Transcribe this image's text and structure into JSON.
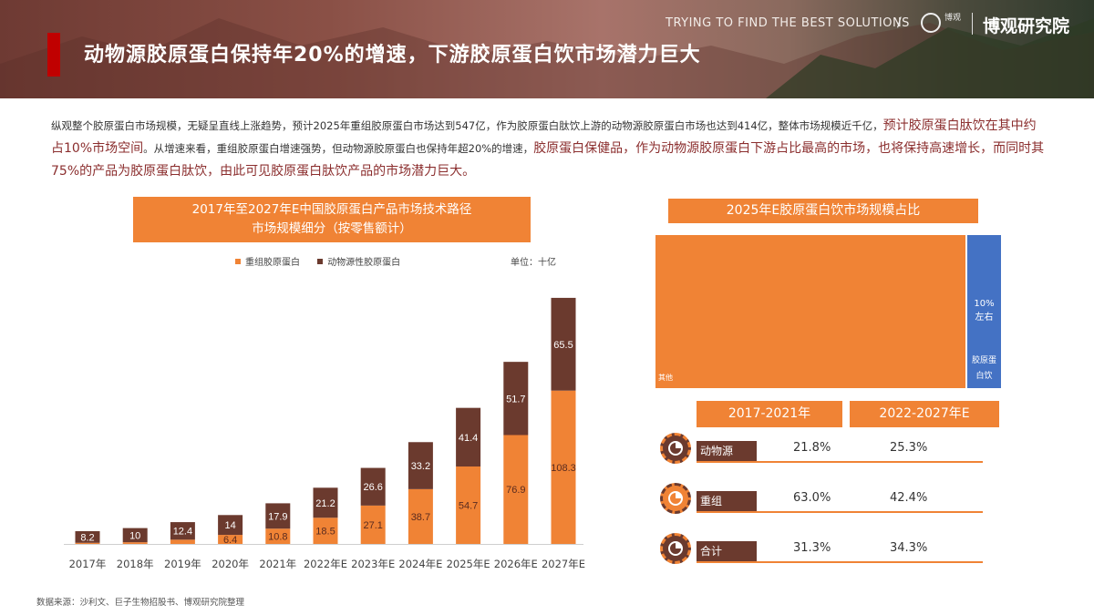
{
  "header": {
    "title": "动物源胶原蛋白保持年20%的增速，下游胶原蛋白饮市场潜力巨大",
    "tagline": "TRYING TO FIND THE BEST SOLUTIONS",
    "slash": "/",
    "brand": "博观研究院",
    "logo_small": "博观",
    "accent_color": "#c00000"
  },
  "intro": {
    "part1": "纵观整个胶原蛋白市场规模，无疑呈直线上涨趋势，预计2025年重组胶原蛋白市场达到547亿，作为胶原蛋白肽饮上游的动物源胶原蛋白市场也达到414亿，整体市场规模近千亿，",
    "hl1": "预计胶原蛋白肽饮在其中约占10%市场空间",
    "part2": "。从增速来看，重组胶原蛋白增速强势，但动物源胶原蛋白也保持年超20%的增速，",
    "hl2": "胶原蛋白保健品，作为动物源胶原蛋白下游占比最高的市场，也将保持高速增长，而同时其75%的产品为胶原蛋白肽饮，由此可见胶原蛋白肽饮产品的市场潜力巨大。"
  },
  "bar_section": {
    "title_line1": "2017年至2027年E中国胶原蛋白产品市场技术路径",
    "title_line2": "市场规模细分（按零售额计）",
    "unit": "单位：十亿"
  },
  "chart_data": [
    {
      "type": "bar",
      "stacked": true,
      "title": "2017年至2027年E中国胶原蛋白产品市场技术路径 市场规模细分（按零售额计）",
      "unit": "单位：十亿",
      "categories": [
        "2017年",
        "2018年",
        "2019年",
        "2020年",
        "2021年",
        "2022年E",
        "2023年E",
        "2024年E",
        "2025年E",
        "2026年E",
        "2027年E"
      ],
      "series": [
        {
          "name": "重组胶原蛋白",
          "color": "#f08335",
          "values": [
            null,
            null,
            null,
            6.4,
            10.8,
            18.5,
            27.1,
            38.7,
            54.7,
            76.9,
            108.3
          ],
          "values_est": [
            0.8,
            1.2,
            3.0
          ]
        },
        {
          "name": "动物源性胶原蛋白",
          "color": "#6b3a2e",
          "values": [
            8.2,
            10,
            12.4,
            14.0,
            17.9,
            21.2,
            26.6,
            33.2,
            41.4,
            51.7,
            65.5
          ]
        }
      ],
      "legend": "top-center",
      "grid": false
    },
    {
      "type": "treemap",
      "title": "2025年E胶原蛋白饮市场规模占比",
      "items": [
        {
          "label": "其他",
          "share": 0.9,
          "color": "#f08335"
        },
        {
          "label": "胶原蛋白饮",
          "share": 0.1,
          "value_text": "10%左右",
          "color": "#4472c4"
        }
      ]
    },
    {
      "type": "table",
      "columns": [
        "2017-2021年",
        "2022-2027年E"
      ],
      "rows": [
        {
          "label": "动物源",
          "values": [
            "21.8%",
            "25.3%"
          ]
        },
        {
          "label": "重组",
          "values": [
            "63.0%",
            "42.4%"
          ]
        },
        {
          "label": "合计",
          "values": [
            "31.3%",
            "34.3%"
          ]
        }
      ]
    }
  ],
  "treemap": {
    "title": "2025年E胶原蛋白饮市场规模占比",
    "other_label": "其他",
    "pct_line1": "10%",
    "pct_line2": "左右",
    "drink_line1": "胶原蛋",
    "drink_line2": "白饮"
  },
  "cagr": {
    "period1": "2017-2021年",
    "period2": "2022-2027年E",
    "rows": [
      {
        "label": "动物源",
        "v1": "21.8%",
        "v2": "25.3%"
      },
      {
        "label": "重组",
        "v1": "63.0%",
        "v2": "42.4%"
      },
      {
        "label": "合计",
        "v1": "31.3%",
        "v2": "34.3%"
      }
    ]
  },
  "source": "数据来源：沙利文、巨子生物招股书、博观研究院整理"
}
